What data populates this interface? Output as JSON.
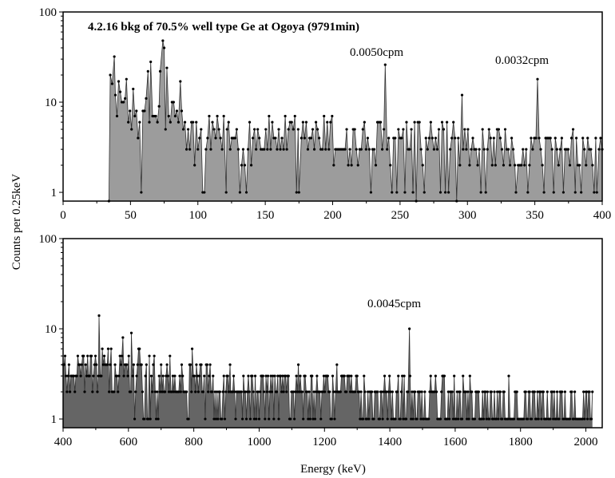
{
  "ylabel": "Counts per 0.25keV",
  "chart_data": [
    {
      "type": "line",
      "title": "4.2.16 bkg of 70.5% well type Ge at Ogoya (9791min)",
      "xlabel": "",
      "ylabel": "Counts per 0.25keV",
      "xlim": [
        0,
        400
      ],
      "ylim": [
        0.8,
        100
      ],
      "yscale": "log",
      "x_ticks": [
        "0",
        "50",
        "100",
        "150",
        "200",
        "250",
        "300",
        "350",
        "400"
      ],
      "y_ticks": [
        "1",
        "10",
        "100"
      ],
      "grid": false,
      "legend": "none",
      "annotations": [
        {
          "text": "0.0050cpm",
          "x": 239,
          "y": 45
        },
        {
          "text": "0.0032cpm",
          "x": 349,
          "y": 36
        }
      ],
      "series": [
        {
          "segments": [
            {
              "from": 34,
              "to": 45,
              "base": 11,
              "noise": 0.45
            },
            {
              "from": 45,
              "to": 90,
              "base": 7,
              "noise": 0.5
            },
            {
              "from": 90,
              "to": 200,
              "base": 4,
              "noise": 0.6
            },
            {
              "from": 200,
              "to": 300,
              "base": 3.5,
              "noise": 0.6
            },
            {
              "from": 300,
              "to": 400,
              "base": 2.6,
              "noise": 0.65
            }
          ],
          "peaks": [
            {
              "x": 35,
              "y": 20
            },
            {
              "x": 38,
              "y": 32
            },
            {
              "x": 47,
              "y": 18
            },
            {
              "x": 52,
              "y": 14
            },
            {
              "x": 63,
              "y": 22
            },
            {
              "x": 65,
              "y": 28
            },
            {
              "x": 72,
              "y": 22
            },
            {
              "x": 74,
              "y": 48
            },
            {
              "x": 75,
              "y": 40
            },
            {
              "x": 77,
              "y": 24
            },
            {
              "x": 87,
              "y": 17
            },
            {
              "x": 239,
              "y": 26
            },
            {
              "x": 296,
              "y": 12
            },
            {
              "x": 352,
              "y": 18
            }
          ],
          "dips": [
            {
              "x": 34,
              "y": 0.8
            },
            {
              "x": 58,
              "y": 1
            },
            {
              "x": 121,
              "y": 1
            },
            {
              "x": 175,
              "y": 1
            },
            {
              "x": 262,
              "y": 0.8
            },
            {
              "x": 292,
              "y": 0.8
            },
            {
              "x": 336,
              "y": 1
            },
            {
              "x": 380,
              "y": 1
            },
            {
              "x": 396,
              "y": 1
            }
          ]
        }
      ]
    },
    {
      "type": "line",
      "title": "",
      "xlabel": "Energy (keV)",
      "ylabel": "Counts per 0.25keV",
      "xlim": [
        400,
        2050
      ],
      "ylim": [
        0.8,
        100
      ],
      "yscale": "log",
      "x_ticks": [
        "400",
        "600",
        "800",
        "1000",
        "1200",
        "1400",
        "1600",
        "1800",
        "2000"
      ],
      "y_ticks": [
        "1",
        "10",
        "100"
      ],
      "grid": false,
      "legend": "none",
      "annotations": [
        {
          "text": "0.0045cpm",
          "x": 1460,
          "y": 35
        }
      ],
      "series": [
        {
          "segments": [
            {
              "from": 400,
              "to": 680,
              "base": 3.5,
              "noise": 0.55
            },
            {
              "from": 680,
              "to": 850,
              "base": 2.6,
              "noise": 0.55
            },
            {
              "from": 850,
              "to": 1300,
              "base": 2,
              "noise": 0.55
            },
            {
              "from": 1300,
              "to": 1700,
              "base": 1.6,
              "noise": 0.6
            },
            {
              "from": 1700,
              "to": 2020,
              "base": 1.3,
              "noise": 0.6
            }
          ],
          "peaks": [
            {
              "x": 511,
              "y": 17
            },
            {
              "x": 510,
              "y": 14
            },
            {
              "x": 583,
              "y": 8
            },
            {
              "x": 609,
              "y": 9
            },
            {
              "x": 727,
              "y": 5
            },
            {
              "x": 795,
              "y": 6
            },
            {
              "x": 911,
              "y": 4
            },
            {
              "x": 1120,
              "y": 4
            },
            {
              "x": 1238,
              "y": 4
            },
            {
              "x": 1460,
              "y": 10
            },
            {
              "x": 1764,
              "y": 3
            },
            {
              "x": 2000,
              "y": 2
            }
          ],
          "dips": []
        }
      ]
    }
  ]
}
